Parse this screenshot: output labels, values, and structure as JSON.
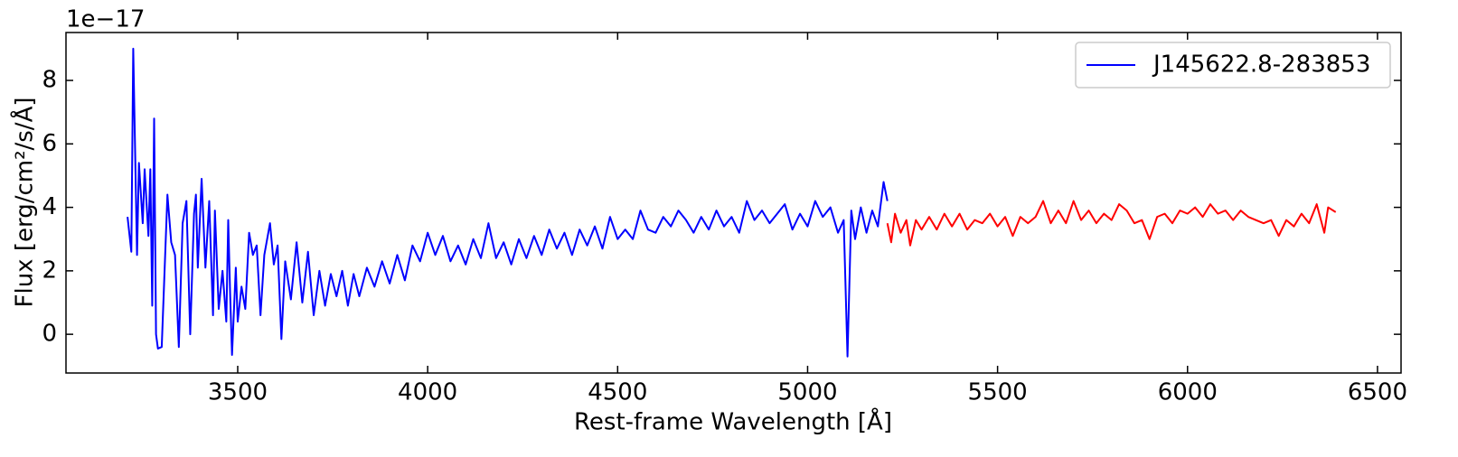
{
  "chart_data": {
    "type": "line",
    "x_label": "Rest-frame Wavelength [Å]",
    "y_label": "Flux [erg/cm²/s/Å]",
    "y_offset_text": "1e−17",
    "xlim": [
      3048,
      6562
    ],
    "ylim": [
      -1.22,
      9.51
    ],
    "xticks": [
      3500,
      4000,
      4500,
      5000,
      5500,
      6000,
      6500
    ],
    "yticks": [
      0,
      2,
      4,
      6,
      8
    ],
    "legend": "upper right",
    "series": [
      {
        "name": "J145622.8-283853",
        "color": "#0000ff",
        "x": [
          3210,
          3220,
          3225,
          3235,
          3240,
          3250,
          3255,
          3265,
          3270,
          3275,
          3280,
          3285,
          3290,
          3300,
          3310,
          3315,
          3325,
          3335,
          3345,
          3355,
          3365,
          3375,
          3385,
          3390,
          3395,
          3405,
          3415,
          3425,
          3435,
          3440,
          3450,
          3460,
          3470,
          3475,
          3480,
          3485,
          3495,
          3500,
          3510,
          3520,
          3530,
          3540,
          3550,
          3560,
          3570,
          3585,
          3595,
          3605,
          3615,
          3625,
          3640,
          3655,
          3670,
          3685,
          3700,
          3715,
          3730,
          3745,
          3760,
          3775,
          3790,
          3805,
          3820,
          3840,
          3860,
          3880,
          3900,
          3920,
          3940,
          3960,
          3980,
          4000,
          4020,
          4040,
          4060,
          4080,
          4100,
          4120,
          4140,
          4160,
          4180,
          4200,
          4220,
          4240,
          4260,
          4280,
          4300,
          4320,
          4340,
          4360,
          4380,
          4400,
          4420,
          4440,
          4460,
          4480,
          4500,
          4520,
          4540,
          4560,
          4580,
          4600,
          4620,
          4640,
          4660,
          4680,
          4700,
          4720,
          4740,
          4760,
          4780,
          4800,
          4820,
          4840,
          4860,
          4880,
          4900,
          4920,
          4940,
          4960,
          4980,
          5000,
          5020,
          5040,
          5060,
          5080,
          5095,
          5105,
          5115,
          5125,
          5140,
          5155,
          5170,
          5185,
          5200,
          5210
        ],
        "values": [
          3.7,
          2.6,
          9.0,
          2.5,
          5.4,
          3.5,
          5.2,
          3.1,
          5.2,
          0.9,
          6.8,
          0,
          -0.45,
          -0.4,
          2.8,
          4.4,
          2.9,
          2.5,
          -0.4,
          3.5,
          4.2,
          0,
          3.8,
          4.4,
          2.1,
          4.9,
          2.1,
          4.2,
          0.6,
          3.9,
          0.8,
          2.0,
          0.4,
          3.6,
          1.3,
          -0.65,
          2.1,
          0.4,
          1.5,
          0.8,
          3.2,
          2.5,
          2.8,
          0.6,
          2.5,
          3.5,
          2.2,
          2.8,
          -0.15,
          2.3,
          1.1,
          2.9,
          1.0,
          2.6,
          0.6,
          2.0,
          0.9,
          1.9,
          1.2,
          2.0,
          0.9,
          1.9,
          1.2,
          2.1,
          1.5,
          2.3,
          1.6,
          2.5,
          1.7,
          2.8,
          2.3,
          3.2,
          2.5,
          3.1,
          2.3,
          2.8,
          2.2,
          3.0,
          2.4,
          3.5,
          2.4,
          2.9,
          2.2,
          3.0,
          2.4,
          3.1,
          2.5,
          3.3,
          2.7,
          3.2,
          2.5,
          3.3,
          2.8,
          3.4,
          2.7,
          3.7,
          3.0,
          3.3,
          3.0,
          3.9,
          3.3,
          3.2,
          3.7,
          3.4,
          3.9,
          3.6,
          3.2,
          3.7,
          3.3,
          3.9,
          3.4,
          3.7,
          3.2,
          4.2,
          3.6,
          3.9,
          3.5,
          3.8,
          4.1,
          3.3,
          3.8,
          3.4,
          4.2,
          3.7,
          4.0,
          3.2,
          3.6,
          -0.7,
          3.9,
          3.0,
          4.0,
          3.2,
          3.9,
          3.4,
          4.8,
          4.2
        ]
      },
      {
        "color": "#ff0000",
        "x": [
          5210,
          5220,
          5230,
          5245,
          5260,
          5270,
          5285,
          5300,
          5320,
          5340,
          5360,
          5380,
          5400,
          5420,
          5440,
          5460,
          5480,
          5500,
          5520,
          5540,
          5560,
          5580,
          5600,
          5620,
          5640,
          5660,
          5680,
          5700,
          5720,
          5740,
          5760,
          5780,
          5800,
          5820,
          5840,
          5860,
          5880,
          5900,
          5920,
          5940,
          5960,
          5980,
          6000,
          6020,
          6040,
          6060,
          6080,
          6100,
          6120,
          6140,
          6160,
          6180,
          6200,
          6220,
          6240,
          6260,
          6280,
          6300,
          6320,
          6340,
          6360,
          6370,
          6390
        ],
        "values": [
          3.5,
          2.9,
          3.8,
          3.2,
          3.6,
          2.8,
          3.6,
          3.3,
          3.7,
          3.3,
          3.8,
          3.4,
          3.8,
          3.3,
          3.6,
          3.5,
          3.8,
          3.4,
          3.7,
          3.1,
          3.7,
          3.5,
          3.7,
          4.2,
          3.5,
          3.9,
          3.5,
          4.2,
          3.6,
          3.9,
          3.5,
          3.8,
          3.6,
          4.1,
          3.9,
          3.5,
          3.6,
          3.0,
          3.7,
          3.8,
          3.5,
          3.9,
          3.8,
          4.0,
          3.7,
          4.1,
          3.8,
          3.9,
          3.6,
          3.9,
          3.7,
          3.6,
          3.5,
          3.6,
          3.1,
          3.6,
          3.4,
          3.8,
          3.5,
          4.1,
          3.2,
          4.0,
          3.85
        ]
      }
    ]
  }
}
